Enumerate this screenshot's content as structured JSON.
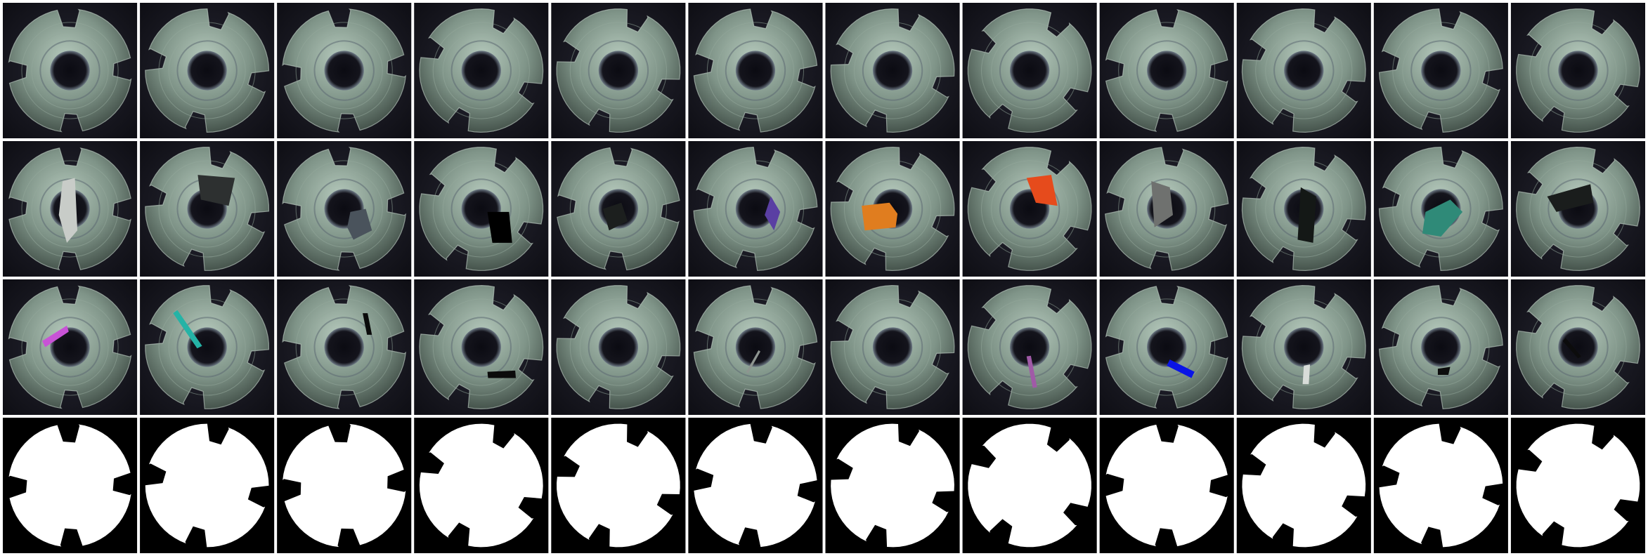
{
  "figure": {
    "rows": 4,
    "cols": 12,
    "row_kinds": [
      "normal",
      "large_anomaly",
      "scratch_anomaly",
      "mask"
    ]
  },
  "colors": {
    "separator": "#ffffff",
    "background": "#16161e",
    "part_base": "#8fa597",
    "part_dark": "#3a453f",
    "mask_foreground": "#ffffff",
    "mask_background": "#000000"
  },
  "rows": [
    {
      "kind": "normal",
      "tiles": [
        {
          "rotation": 8
        },
        {
          "rotation": 20
        },
        {
          "rotation": 5
        },
        {
          "rotation": 32
        },
        {
          "rotation": 28
        },
        {
          "rotation": 15
        },
        {
          "rotation": 25
        },
        {
          "rotation": 40
        },
        {
          "rotation": 10
        },
        {
          "rotation": 30
        },
        {
          "rotation": 18
        },
        {
          "rotation": 35
        }
      ]
    },
    {
      "kind": "large_anomaly",
      "tiles": [
        {
          "rotation": 10,
          "anomaly": {
            "color": "#c8ccc8",
            "shape": "vertical-crystal"
          }
        },
        {
          "rotation": 22,
          "anomaly": {
            "color": "#2d3030",
            "shape": "dark-top-patch"
          }
        },
        {
          "rotation": 5,
          "anomaly": {
            "color": "#4a535c",
            "shape": "gray-bottom-right"
          }
        },
        {
          "rotation": 34,
          "anomaly": {
            "color": "#000000",
            "shape": "black-lower-right"
          }
        },
        {
          "rotation": 12,
          "anomaly": {
            "color": "#1c1f1e",
            "shape": "black-center-left"
          }
        },
        {
          "rotation": 18,
          "anomaly": {
            "color": "#5a3fa3",
            "shape": "purple-diamond"
          }
        },
        {
          "rotation": 26,
          "anomaly": {
            "color": "#e07d1f",
            "shape": "orange-block"
          }
        },
        {
          "rotation": 40,
          "anomaly": {
            "color": "#e64b1c",
            "shape": "red-block"
          }
        },
        {
          "rotation": 15,
          "anomaly": {
            "color": "#6f716f",
            "shape": "gray-left"
          }
        },
        {
          "rotation": 30,
          "anomaly": {
            "color": "#141816",
            "shape": "black-vertical"
          }
        },
        {
          "rotation": 20,
          "anomaly": {
            "color": "#2f8a78",
            "shape": "teal-block"
          }
        },
        {
          "rotation": 36,
          "anomaly": {
            "color": "#1a1d1c",
            "shape": "black-top-wedge"
          }
        }
      ]
    },
    {
      "kind": "scratch_anomaly",
      "tiles": [
        {
          "rotation": 8,
          "anomaly": {
            "color": "#c853d6",
            "shape": "magenta-bar"
          }
        },
        {
          "rotation": 22,
          "anomaly": {
            "color": "#25b3a6",
            "shape": "teal-scratch"
          }
        },
        {
          "rotation": 5,
          "anomaly": {
            "color": "#0a0a0a",
            "shape": "black-scratch-right"
          }
        },
        {
          "rotation": 32,
          "anomaly": {
            "color": "#0b0b0b",
            "shape": "black-scratch-bottom"
          }
        },
        {
          "rotation": 28
        },
        {
          "rotation": 15,
          "anomaly": {
            "color": "#8e9590",
            "shape": "thin-gray-scratch"
          }
        },
        {
          "rotation": 25
        },
        {
          "rotation": 40,
          "anomaly": {
            "color": "#a05aa7",
            "shape": "purple-scratch"
          }
        },
        {
          "rotation": 10,
          "anomaly": {
            "color": "#0a14e6",
            "shape": "blue-bar"
          }
        },
        {
          "rotation": 30,
          "anomaly": {
            "color": "#d8dcd8",
            "shape": "white-scratch"
          }
        },
        {
          "rotation": 18,
          "anomaly": {
            "color": "#0d0d0d",
            "shape": "black-small"
          }
        },
        {
          "rotation": 35,
          "anomaly": {
            "color": "#0c0c0c",
            "shape": "black-diagonal"
          }
        }
      ]
    },
    {
      "kind": "mask",
      "tiles": [
        {
          "rotation": 8
        },
        {
          "rotation": 20
        },
        {
          "rotation": 5
        },
        {
          "rotation": 32
        },
        {
          "rotation": 28
        },
        {
          "rotation": 15
        },
        {
          "rotation": 25
        },
        {
          "rotation": 40
        },
        {
          "rotation": 10
        },
        {
          "rotation": 30
        },
        {
          "rotation": 18
        },
        {
          "rotation": 35
        }
      ]
    }
  ]
}
